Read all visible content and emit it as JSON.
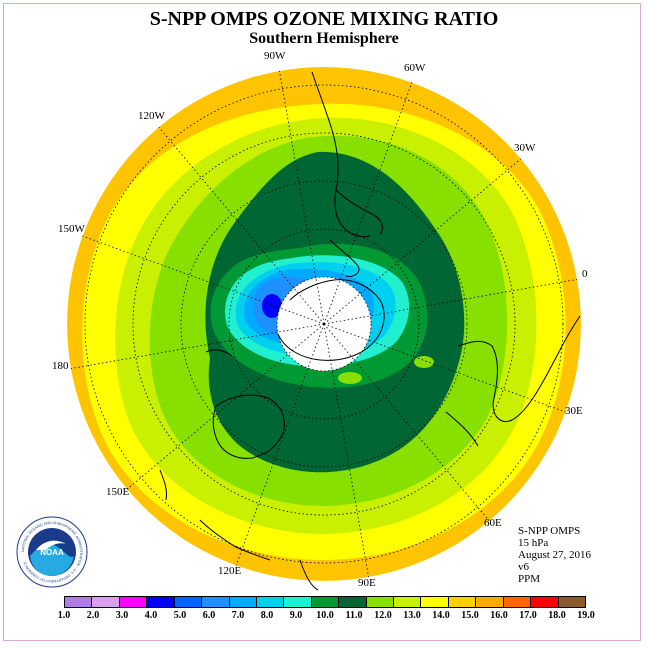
{
  "title": "S-NPP OMPS OZONE MIXING RATIO",
  "subtitle": "Southern Hemisphere",
  "longitude_labels": [
    "90W",
    "60W",
    "30W",
    "0",
    "30E",
    "60E",
    "90E",
    "120E",
    "150E",
    "180",
    "150W",
    "120W"
  ],
  "info": {
    "instrument": "S-NPP OMPS",
    "level": "15 hPa",
    "date": "August 27, 2016",
    "version": "v6",
    "units": "PPM"
  },
  "logo": {
    "name": "NOAA",
    "text": "NATIONAL OCEANIC AND ATMOSPHERIC ADMINISTRATION · U.S. DEPARTMENT OF COMMERCE"
  },
  "colorbar": {
    "ticks": [
      "1.0",
      "2.0",
      "3.0",
      "4.0",
      "5.0",
      "6.0",
      "7.0",
      "8.0",
      "9.0",
      "10.0",
      "11.0",
      "12.0",
      "13.0",
      "14.0",
      "15.0",
      "16.0",
      "17.0",
      "18.0",
      "19.0"
    ],
    "colors": [
      "#b07ce8",
      "#d9a0f0",
      "#ff00ff",
      "#0000ff",
      "#0064ff",
      "#1e90ff",
      "#00aaff",
      "#00d0f0",
      "#20f0d0",
      "#009933",
      "#006633",
      "#88e000",
      "#c8f000",
      "#ffff00",
      "#ffd000",
      "#ffaa00",
      "#ff6600",
      "#ff0000",
      "#8b5a2b"
    ]
  },
  "colors": {
    "outer": "#ffc400",
    "yellow": "#ffff00",
    "yellow_green": "#c8f000",
    "green": "#88e000",
    "dark_green": "#006633",
    "medium_green": "#009933",
    "aqua": "#20f0d0",
    "cyan": "#00d0f0",
    "sky": "#00aaff",
    "blue": "#1e90ff",
    "deep_blue": "#0000ff",
    "pole_hole": "#ffffff"
  }
}
